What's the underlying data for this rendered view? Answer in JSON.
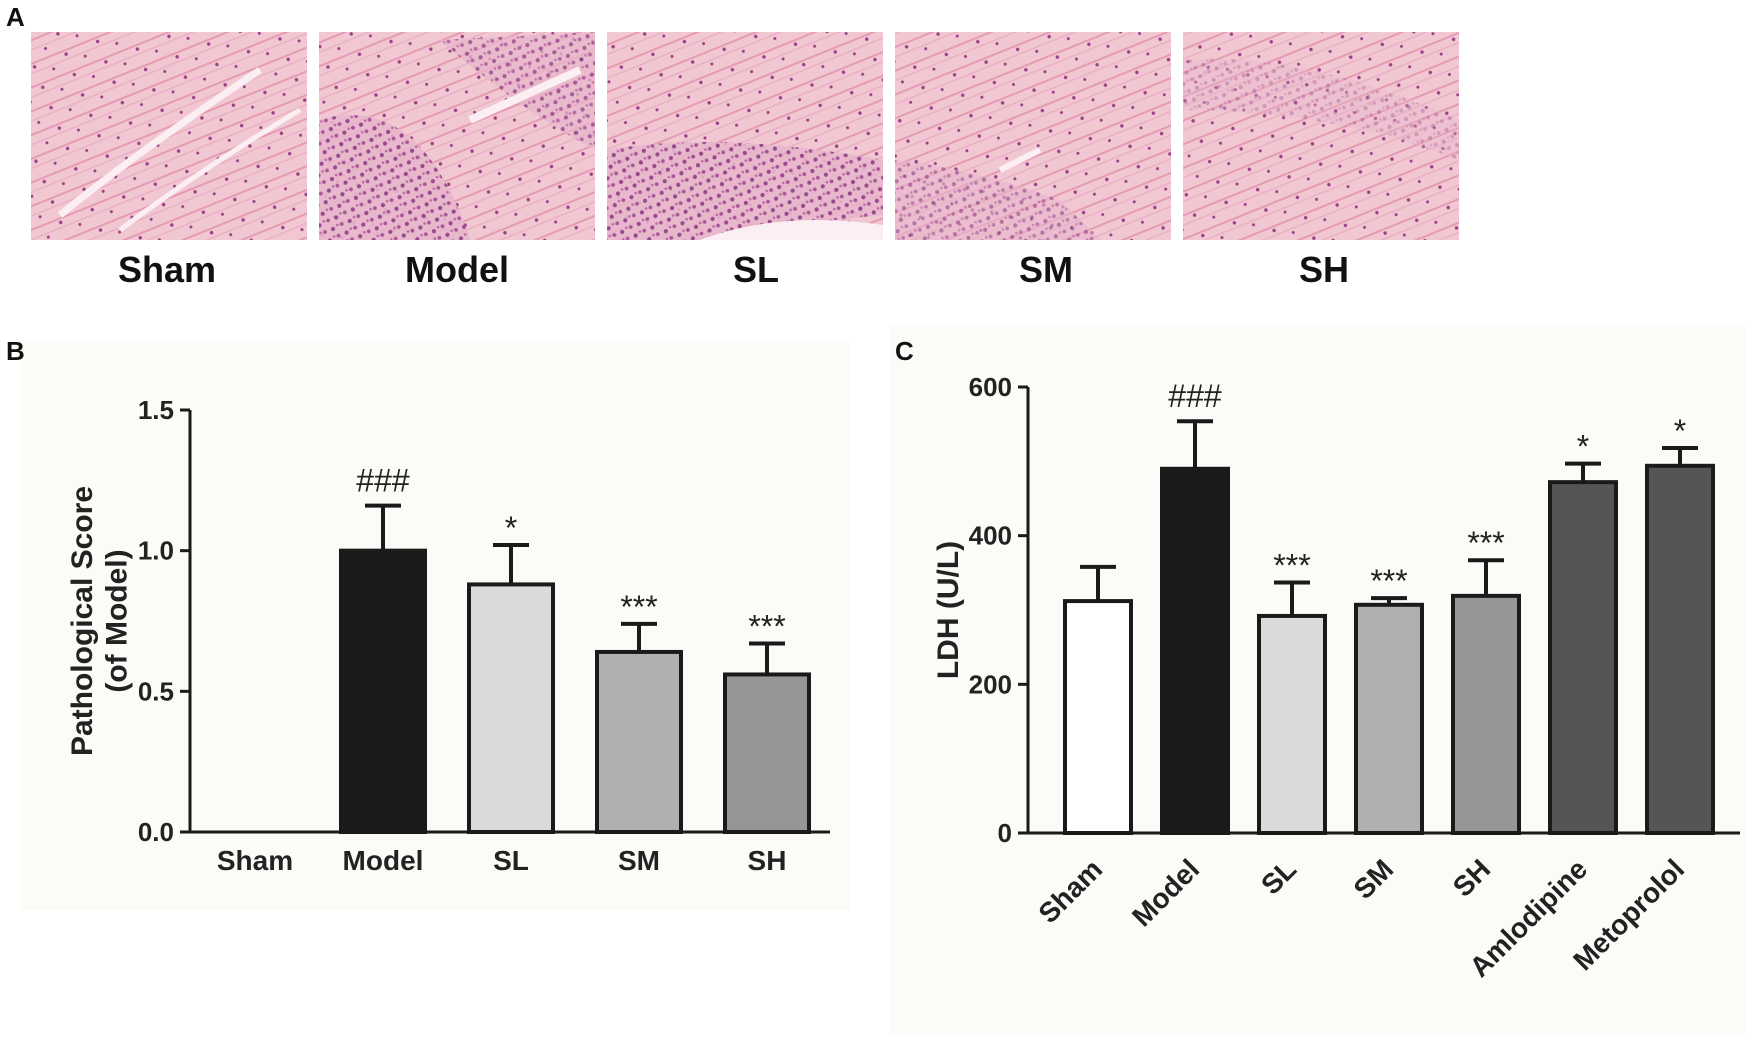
{
  "panels": {
    "a": {
      "label": "A",
      "captions": [
        "Sham",
        "Model",
        "SL",
        "SM",
        "SH"
      ]
    },
    "b": {
      "label": "B"
    },
    "c": {
      "label": "C"
    }
  },
  "colors": {
    "tissue_bg": "#f1c7d2",
    "tissue_fiber": "#e59bb2",
    "tissue_nuclei": "#9b3f86",
    "bar_outline": "#1a1a1a"
  },
  "chart_data": [
    {
      "type": "bar",
      "panel": "B",
      "categories": [
        "Sham",
        "Model",
        "SL",
        "SM",
        "SH"
      ],
      "values": [
        0.0,
        1.0,
        0.88,
        0.64,
        0.56
      ],
      "errors": [
        0.0,
        0.16,
        0.14,
        0.1,
        0.11
      ],
      "annotations": [
        "",
        "###",
        "*",
        "***",
        "***"
      ],
      "fill_colors": [
        "#ffffff",
        "#1b1b1b",
        "#dadada",
        "#b0b0b0",
        "#969696"
      ],
      "xlabel": "",
      "ylabel": "Pathological Score (of Model)",
      "ylabel_lines": [
        "Pathological Score",
        "(of Model)"
      ],
      "yticks": [
        "0.0",
        "0.5",
        "1.0",
        "1.5"
      ],
      "ylim": [
        0,
        1.5
      ],
      "grid": false,
      "legend": "none"
    },
    {
      "type": "bar",
      "panel": "C",
      "categories": [
        "Sham",
        "Model",
        "SL",
        "SM",
        "SH",
        "Amlodipine",
        "Metoprolol"
      ],
      "values": [
        312,
        490,
        292,
        307,
        319,
        472,
        494
      ],
      "errors": [
        46,
        64,
        45,
        9,
        48,
        25,
        24
      ],
      "annotations": [
        "",
        "###",
        "***",
        "***",
        "***",
        "*",
        "*"
      ],
      "fill_colors": [
        "#ffffff",
        "#1b1b1b",
        "#dadada",
        "#b0b0b0",
        "#969696",
        "#555555",
        "#555555"
      ],
      "xlabel": "",
      "ylabel": "LDH (U/L)",
      "yticks": [
        "0",
        "200",
        "400",
        "600"
      ],
      "ylim": [
        0,
        600
      ],
      "grid": false,
      "legend": "none"
    }
  ]
}
